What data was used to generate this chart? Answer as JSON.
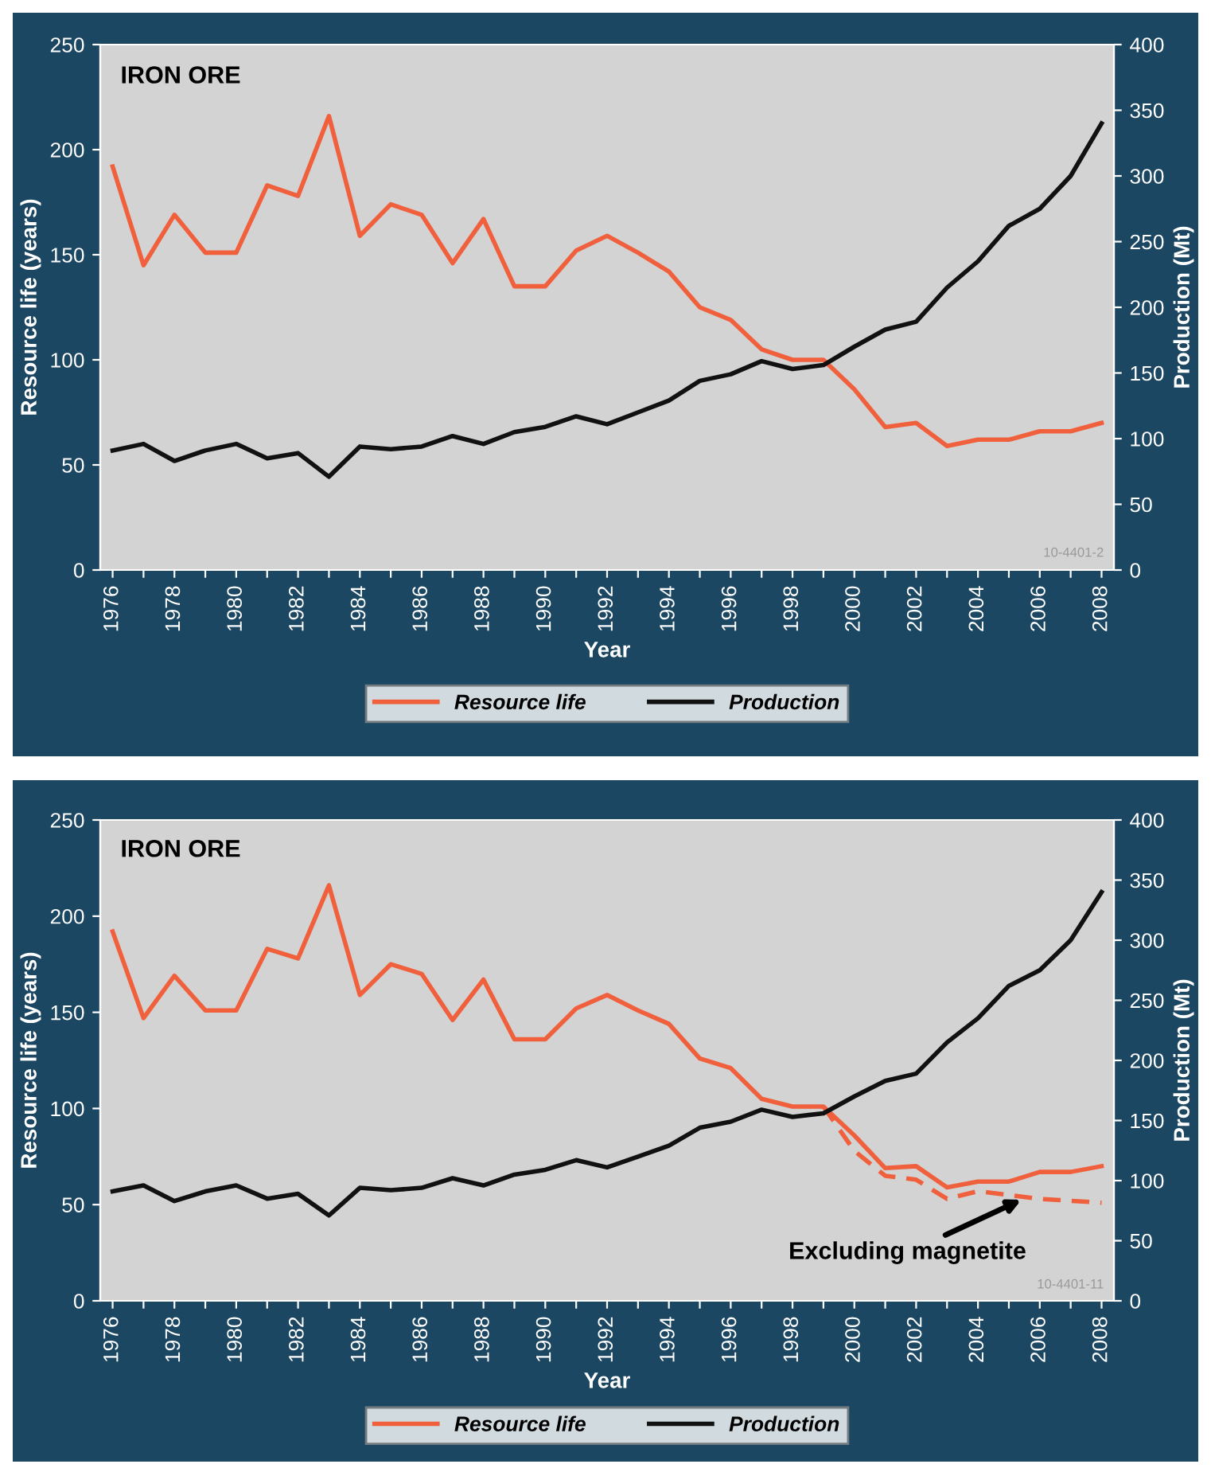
{
  "chart_data": [
    {
      "type": "line",
      "title": "IRON ORE",
      "xlabel": "Year",
      "ylabel": "Resource life (years)",
      "y2label": "Production (Mt)",
      "x": [
        1976,
        1977,
        1978,
        1979,
        1980,
        1981,
        1982,
        1983,
        1984,
        1985,
        1986,
        1987,
        1988,
        1989,
        1990,
        1991,
        1992,
        1993,
        1994,
        1995,
        1996,
        1997,
        1998,
        1999,
        2000,
        2001,
        2002,
        2003,
        2004,
        2005,
        2006,
        2007,
        2008
      ],
      "series": [
        {
          "name": "Resource life",
          "color": "#f0603c",
          "values": [
            192,
            145,
            169,
            151,
            151,
            183,
            178,
            216,
            159,
            174,
            169,
            146,
            167,
            135,
            135,
            152,
            159,
            151,
            142,
            125,
            119,
            105,
            100,
            100,
            86,
            68,
            70,
            59,
            62,
            62,
            66,
            66,
            70
          ]
        },
        {
          "name": "Production",
          "color": "#111111",
          "axis": "y2",
          "values": [
            91,
            96,
            83,
            91,
            96,
            85,
            89,
            71,
            94,
            92,
            94,
            102,
            96,
            105,
            109,
            117,
            111,
            120,
            129,
            144,
            149,
            159,
            153,
            156,
            170,
            183,
            189,
            215,
            235,
            262,
            275,
            300,
            340
          ]
        }
      ],
      "xlim": [
        1975.6,
        2008.4
      ],
      "ylim": [
        0,
        250
      ],
      "yticks": [
        0,
        50,
        100,
        150,
        200,
        250
      ],
      "y2lim": [
        0,
        400
      ],
      "y2ticks": [
        0,
        50,
        100,
        150,
        200,
        250,
        300,
        350,
        400
      ],
      "xticks": [
        1976,
        {
          "value": 1977,
          "label": null
        },
        1978,
        {
          "value": 1979,
          "label": null
        },
        1980,
        {
          "value": 1981,
          "label": null
        },
        1982,
        {
          "value": 1983,
          "label": null
        },
        1984,
        {
          "value": 1985,
          "label": null
        },
        1986,
        {
          "value": 1987,
          "label": null
        },
        1988,
        {
          "value": 1989,
          "label": null
        },
        1990,
        {
          "value": 1991,
          "label": null
        },
        1992,
        {
          "value": 1993,
          "label": null
        },
        1994,
        {
          "value": 1995,
          "label": null
        },
        1996,
        {
          "value": 1997,
          "label": null
        },
        1998,
        {
          "value": 1999,
          "label": null
        },
        2000,
        {
          "value": 2001,
          "label": null
        },
        2002,
        {
          "value": 2003,
          "label": null
        },
        2004,
        {
          "value": 2005,
          "label": null
        },
        2006,
        {
          "value": 2007,
          "label": null
        },
        2008
      ],
      "annotations": [
        "10-4401-2"
      ],
      "legend": "bottom",
      "grid": false,
      "line_style": "solid",
      "marker": "none"
    },
    {
      "type": "line",
      "title": "IRON ORE",
      "xlabel": "Year",
      "ylabel": "Resource life (years)",
      "y2label": "Production (Mt)",
      "x": [
        1976,
        1977,
        1978,
        1979,
        1980,
        1981,
        1982,
        1983,
        1984,
        1985,
        1986,
        1987,
        1988,
        1989,
        1990,
        1991,
        1992,
        1993,
        1994,
        1995,
        1996,
        1997,
        1998,
        1999,
        2000,
        2001,
        2002,
        2003,
        2004,
        2005,
        2006,
        2007,
        2008
      ],
      "series": [
        {
          "name": "Resource life",
          "color": "#f0603c",
          "values": [
            192,
            147,
            169,
            151,
            151,
            183,
            178,
            216,
            159,
            175,
            170,
            146,
            167,
            136,
            136,
            152,
            159,
            151,
            144,
            126,
            121,
            105,
            101,
            101,
            86,
            69,
            70,
            59,
            62,
            62,
            67,
            67,
            70
          ]
        },
        {
          "color": "#f0603c",
          "line_style": "dashed",
          "x": [
            1999,
            2000,
            2001,
            2002,
            2003,
            2004,
            2005,
            2006,
            2007,
            2008
          ],
          "values": [
            101,
            78,
            65,
            63,
            53,
            57,
            55,
            53,
            52,
            51
          ]
        },
        {
          "name": "Production",
          "color": "#111111",
          "axis": "y2",
          "values": [
            91,
            96,
            83,
            91,
            96,
            85,
            89,
            71,
            94,
            92,
            94,
            102,
            96,
            105,
            109,
            117,
            111,
            120,
            129,
            144,
            149,
            159,
            153,
            156,
            170,
            183,
            189,
            215,
            235,
            262,
            275,
            300,
            340
          ]
        }
      ],
      "xlim": [
        1975.6,
        2008.4
      ],
      "ylim": [
        0,
        250
      ],
      "yticks": [
        0,
        50,
        100,
        150,
        200,
        250
      ],
      "y2lim": [
        0,
        400
      ],
      "y2ticks": [
        0,
        50,
        100,
        150,
        200,
        250,
        300,
        350,
        400
      ],
      "xticks": [
        1976,
        {
          "value": 1977,
          "label": null
        },
        1978,
        {
          "value": 1979,
          "label": null
        },
        1980,
        {
          "value": 1981,
          "label": null
        },
        1982,
        {
          "value": 1983,
          "label": null
        },
        1984,
        {
          "value": 1985,
          "label": null
        },
        1986,
        {
          "value": 1987,
          "label": null
        },
        1988,
        {
          "value": 1989,
          "label": null
        },
        1990,
        {
          "value": 1991,
          "label": null
        },
        1992,
        {
          "value": 1993,
          "label": null
        },
        1994,
        {
          "value": 1995,
          "label": null
        },
        1996,
        {
          "value": 1997,
          "label": null
        },
        1998,
        {
          "value": 1999,
          "label": null
        },
        2000,
        {
          "value": 2001,
          "label": null
        },
        2002,
        {
          "value": 2003,
          "label": null
        },
        2004,
        {
          "value": 2005,
          "label": null
        },
        2006,
        {
          "value": 2007,
          "label": null
        },
        2008
      ],
      "annotations": [
        {
          "text": "Excluding magnetite",
          "x": 2005.6,
          "y": 54
        },
        "10-4401-11"
      ],
      "legend": "bottom",
      "grid": false,
      "line_style": "solid",
      "marker": "none"
    }
  ]
}
